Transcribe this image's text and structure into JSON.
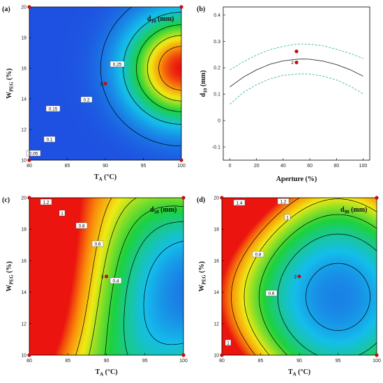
{
  "figure": {
    "colors": {
      "marker": "#c0100f",
      "contour": "#000000",
      "band": "#3fb7ad",
      "fit": "#333333"
    }
  },
  "chart_data": [
    {
      "panel": "(a)",
      "type": "heatmap",
      "subtype": "contour",
      "title": "d10 (mm)",
      "title_main": "d",
      "title_sub": "10",
      "title_unit": " (mm)",
      "xlabel": "TA (°C)",
      "xlabel_main": "T",
      "xlabel_sub": "A",
      "xlabel_unit": " (°C)",
      "ylabel": "WPEG (%)",
      "ylabel_main": "W",
      "ylabel_sub": "PEG",
      "ylabel_unit": " (%)",
      "xlim": [
        80,
        100
      ],
      "ylim": [
        10,
        20
      ],
      "xticks": [
        "80",
        "85",
        "90",
        "95",
        "100"
      ],
      "yticks": [
        "10",
        "12",
        "14",
        "16",
        "18",
        "20"
      ],
      "model": {
        "cx": 100,
        "cy": 16,
        "sx": 6.9,
        "sy": 3.3,
        "peak": 0.3,
        "min": 0.03
      },
      "colormap": "blue-cyan-green-yellow-red",
      "contours": [
        {
          "level": 0.05,
          "label": "0.05"
        },
        {
          "level": 0.1,
          "label": "0.1"
        },
        {
          "level": 0.15,
          "label": "0.15"
        },
        {
          "level": 0.2,
          "label": "0.2"
        },
        {
          "level": 0.25,
          "label": "0.25"
        }
      ],
      "design_points": [
        {
          "x": 80,
          "y": 10
        },
        {
          "x": 100,
          "y": 10
        },
        {
          "x": 80,
          "y": 20
        },
        {
          "x": 100,
          "y": 20
        },
        {
          "x": 90,
          "y": 15,
          "label": "3"
        }
      ]
    },
    {
      "panel": "(b)",
      "type": "line",
      "xlabel": "Aperture (%)",
      "ylabel": "d10 (mm)",
      "ylabel_main": "d",
      "ylabel_sub": "10",
      "ylabel_unit": " (mm)",
      "xlim": [
        -5,
        105
      ],
      "ylim": [
        -0.15,
        0.43
      ],
      "xticks": [
        "0",
        "20",
        "40",
        "60",
        "80",
        "100"
      ],
      "yticks": [
        "-0.1",
        "0",
        "0.1",
        "0.2",
        "0.3",
        "0.4"
      ],
      "series": [
        {
          "role": "fit",
          "x": [
            0,
            10,
            20,
            30,
            40,
            50,
            55,
            60,
            70,
            80,
            90,
            100
          ],
          "y": [
            0.127,
            0.164,
            0.192,
            0.213,
            0.226,
            0.232,
            0.233,
            0.232,
            0.225,
            0.212,
            0.193,
            0.168
          ]
        },
        {
          "role": "upper",
          "x": [
            0,
            10,
            20,
            30,
            40,
            50,
            55,
            60,
            70,
            80,
            90,
            100
          ],
          "y": [
            0.192,
            0.222,
            0.248,
            0.268,
            0.281,
            0.289,
            0.29,
            0.289,
            0.283,
            0.27,
            0.255,
            0.235
          ]
        },
        {
          "role": "lower",
          "x": [
            0,
            10,
            20,
            30,
            40,
            50,
            55,
            60,
            70,
            80,
            90,
            100
          ],
          "y": [
            0.062,
            0.106,
            0.136,
            0.158,
            0.171,
            0.176,
            0.177,
            0.176,
            0.168,
            0.154,
            0.131,
            0.101
          ]
        }
      ],
      "design_points": [
        {
          "x": 50,
          "y": 0.262
        },
        {
          "x": 50,
          "y": 0.22,
          "label": "2"
        }
      ]
    },
    {
      "panel": "(c)",
      "type": "heatmap",
      "subtype": "contour",
      "title": "d50 (mm)",
      "title_main": "d",
      "title_sub": "50",
      "title_unit": " (mm)",
      "xlabel": "TA (°C)",
      "xlabel_main": "T",
      "xlabel_sub": "A",
      "xlabel_unit": " (°C)",
      "ylabel": "WPEG (%)",
      "ylabel_main": "W",
      "ylabel_sub": "PEG",
      "ylabel_unit": " (%)",
      "xlim": [
        80,
        100
      ],
      "ylim": [
        10,
        20
      ],
      "xticks": [
        "80",
        "85",
        "90",
        "95",
        "100"
      ],
      "yticks": [
        "10",
        "12",
        "14",
        "16",
        "18",
        "20"
      ],
      "model": {
        "cx": 100,
        "cy": 14,
        "k": 0.18,
        "sx": 10,
        "sy": 4,
        "a": 0.55,
        "b": 0.28
      },
      "colormap": "blue-cyan-green-yellow-red",
      "contours": [
        {
          "level": 0.4,
          "label": "0.4"
        },
        {
          "level": 0.6,
          "label": "0.6"
        },
        {
          "level": 0.8,
          "label": "0.8"
        },
        {
          "level": 1.0,
          "label": "1"
        },
        {
          "level": 1.2,
          "label": "1.2"
        }
      ],
      "design_points": [
        {
          "x": 80,
          "y": 10
        },
        {
          "x": 100,
          "y": 10
        },
        {
          "x": 80,
          "y": 20
        },
        {
          "x": 100,
          "y": 20
        },
        {
          "x": 90,
          "y": 15,
          "label": "3"
        }
      ]
    },
    {
      "panel": "(d)",
      "type": "heatmap",
      "subtype": "contour",
      "title": "d90 (mm)",
      "title_main": "d",
      "title_sub": "90",
      "title_unit": " (mm)",
      "xlabel": "TA (°C)",
      "xlabel_main": "T",
      "xlabel_sub": "A",
      "xlabel_unit": " (°C)",
      "ylabel": "WPEG (%)",
      "ylabel_main": "W",
      "ylabel_sub": "PEG",
      "ylabel_unit": " (%)",
      "xlim": [
        80,
        100
      ],
      "ylim": [
        10,
        20
      ],
      "xticks": [
        "80",
        "85",
        "90",
        "95",
        "100"
      ],
      "yticks": [
        "10",
        "12",
        "14",
        "16",
        "18",
        "20"
      ],
      "model": {
        "cx": 95,
        "cy": 13.7,
        "sx": 7.2,
        "sy": 3.7,
        "base": 0.52,
        "amp": 0.24
      },
      "colormap": "blue-cyan-green-yellow-red",
      "contours": [
        {
          "level": 0.6,
          "label": "0.6"
        },
        {
          "level": 0.8,
          "label": "0.8"
        },
        {
          "level": 1.0,
          "label": "1"
        },
        {
          "level": 1.2,
          "label": "1.2"
        },
        {
          "level": 1.4,
          "label": "1.4"
        }
      ],
      "design_points": [
        {
          "x": 80,
          "y": 10
        },
        {
          "x": 100,
          "y": 10
        },
        {
          "x": 80,
          "y": 20
        },
        {
          "x": 100,
          "y": 20
        },
        {
          "x": 90,
          "y": 15,
          "label": "3"
        }
      ]
    }
  ]
}
